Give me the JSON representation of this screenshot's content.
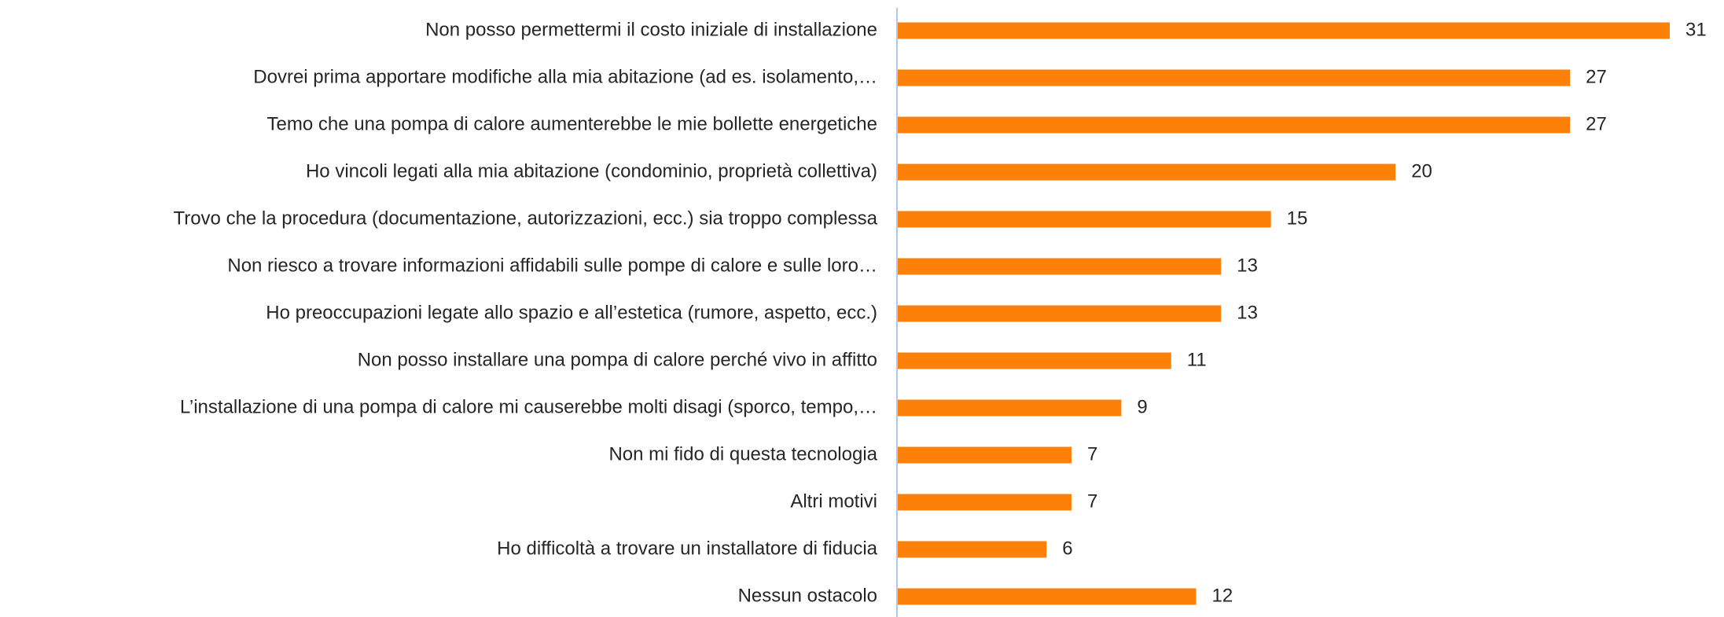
{
  "chart_data": {
    "type": "bar",
    "orientation": "horizontal",
    "categories": [
      "Non posso permettermi il costo iniziale di installazione",
      "Dovrei prima apportare modifiche alla mia abitazione (ad es. isolamento,…",
      "Temo che una pompa di calore aumenterebbe le mie bollette energetiche",
      "Ho vincoli legati alla mia abitazione (condominio, proprietà collettiva)",
      "Trovo che la procedura (documentazione, autorizzazioni, ecc.) sia troppo complessa",
      "Non riesco a trovare informazioni affidabili sulle pompe di calore e sulle loro…",
      "Ho preoccupazioni legate allo spazio e all’estetica (rumore, aspetto, ecc.)",
      "Non posso installare una pompa di calore perché vivo in affitto",
      "L’installazione di una pompa di calore mi causerebbe molti disagi (sporco, tempo,…",
      "Non mi fido di questa tecnologia",
      "Altri motivi",
      "Ho difficoltà a trovare un installatore di fiducia",
      "Nessun ostacolo"
    ],
    "values": [
      31,
      27,
      27,
      20,
      15,
      13,
      13,
      11,
      9,
      7,
      7,
      6,
      12
    ],
    "color": "#fd8008",
    "axis_color": "#b4c7e7"
  }
}
